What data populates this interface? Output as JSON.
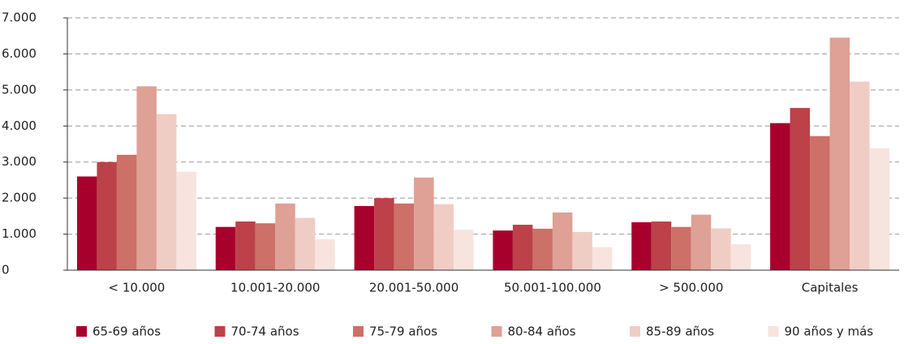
{
  "chart_data": {
    "type": "bar",
    "categories": [
      "< 10.000",
      "10.001-20.000",
      "20.001-50.000",
      "50.001-100.000",
      "> 500.000",
      "Capitales"
    ],
    "series": [
      {
        "name": "65-69 años",
        "color": "#a8002c",
        "values": [
          2600,
          1200,
          1780,
          1100,
          1330,
          4080
        ]
      },
      {
        "name": "70-74 años",
        "color": "#bc4148",
        "values": [
          3000,
          1350,
          2000,
          1260,
          1350,
          4500
        ]
      },
      {
        "name": "75-79 años",
        "color": "#cc7068",
        "values": [
          3200,
          1300,
          1850,
          1150,
          1200,
          3720
        ]
      },
      {
        "name": "80-84 años",
        "color": "#dfa095",
        "values": [
          5100,
          1850,
          2570,
          1600,
          1540,
          6450
        ]
      },
      {
        "name": "85-89 años",
        "color": "#f0cdc4",
        "values": [
          4330,
          1450,
          1830,
          1060,
          1160,
          5230
        ]
      },
      {
        "name": "90 años y más",
        "color": "#f7e4df",
        "values": [
          2730,
          860,
          1120,
          640,
          720,
          3380
        ]
      }
    ],
    "ylim": [
      0,
      7000
    ],
    "yticks": [
      0,
      {
        "value": 1000,
        "label": "1.000"
      },
      {
        "value": 2000,
        "label": "2.000"
      },
      {
        "value": 3000,
        "label": "3.000"
      },
      {
        "value": 4000,
        "label": "4.000"
      },
      {
        "value": 5000,
        "label": "5.000"
      },
      {
        "value": 6000,
        "label": "6.000"
      },
      {
        "value": 7000,
        "label": "7.000"
      }
    ],
    "grid": true,
    "legend": "bottom"
  }
}
